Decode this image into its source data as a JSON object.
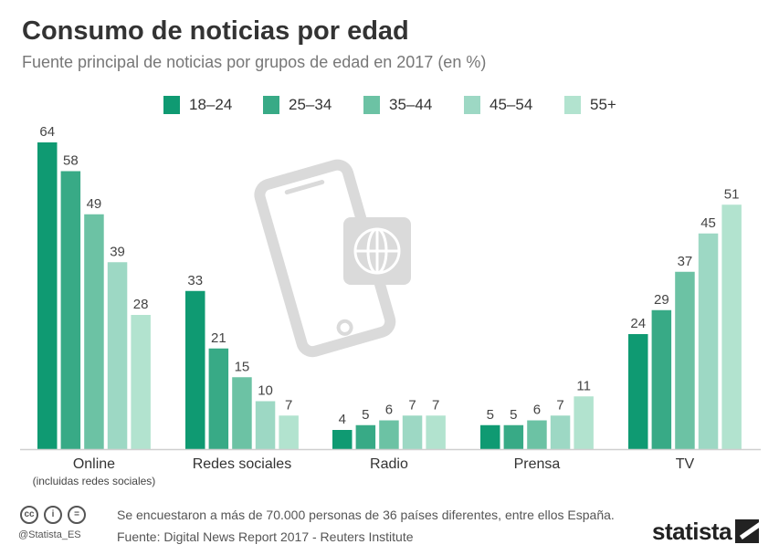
{
  "title": "Consumo de noticias por edad",
  "subtitle": "Fuente principal de noticias por grupos de edad en 2017 (en %)",
  "chart_data": {
    "type": "bar",
    "title": "Consumo de noticias por edad",
    "subtitle": "Fuente principal de noticias por grupos de edad en 2017 (en %)",
    "categories": [
      "Online",
      "Redes sociales",
      "Radio",
      "Prensa",
      "TV"
    ],
    "category_sublabels": [
      "(incluidas redes sociales)",
      "",
      "",
      "",
      ""
    ],
    "series": [
      {
        "name": "18–24",
        "color": "#0f9a72",
        "values": [
          64,
          33,
          4,
          5,
          24
        ]
      },
      {
        "name": "25–34",
        "color": "#38aa86",
        "values": [
          58,
          21,
          5,
          5,
          29
        ]
      },
      {
        "name": "35–44",
        "color": "#6cc2a4",
        "values": [
          49,
          15,
          6,
          6,
          37
        ]
      },
      {
        "name": "45–54",
        "color": "#9dd8c4",
        "values": [
          39,
          10,
          7,
          7,
          45
        ]
      },
      {
        "name": "55+",
        "color": "#b2e3cf",
        "values": [
          28,
          7,
          7,
          11,
          51
        ]
      }
    ],
    "ylim": [
      0,
      64
    ],
    "grid": false,
    "legend_position": "top"
  },
  "footer": {
    "note": "Se encuestaron a más de 70.000 personas de 36 países diferentes, entre ellos España.",
    "source": "Fuente: Digital News Report 2017 - Reuters Institute",
    "handle": "@Statista_ES",
    "license_icons": [
      "cc",
      "i",
      "="
    ],
    "brand": "statista"
  }
}
